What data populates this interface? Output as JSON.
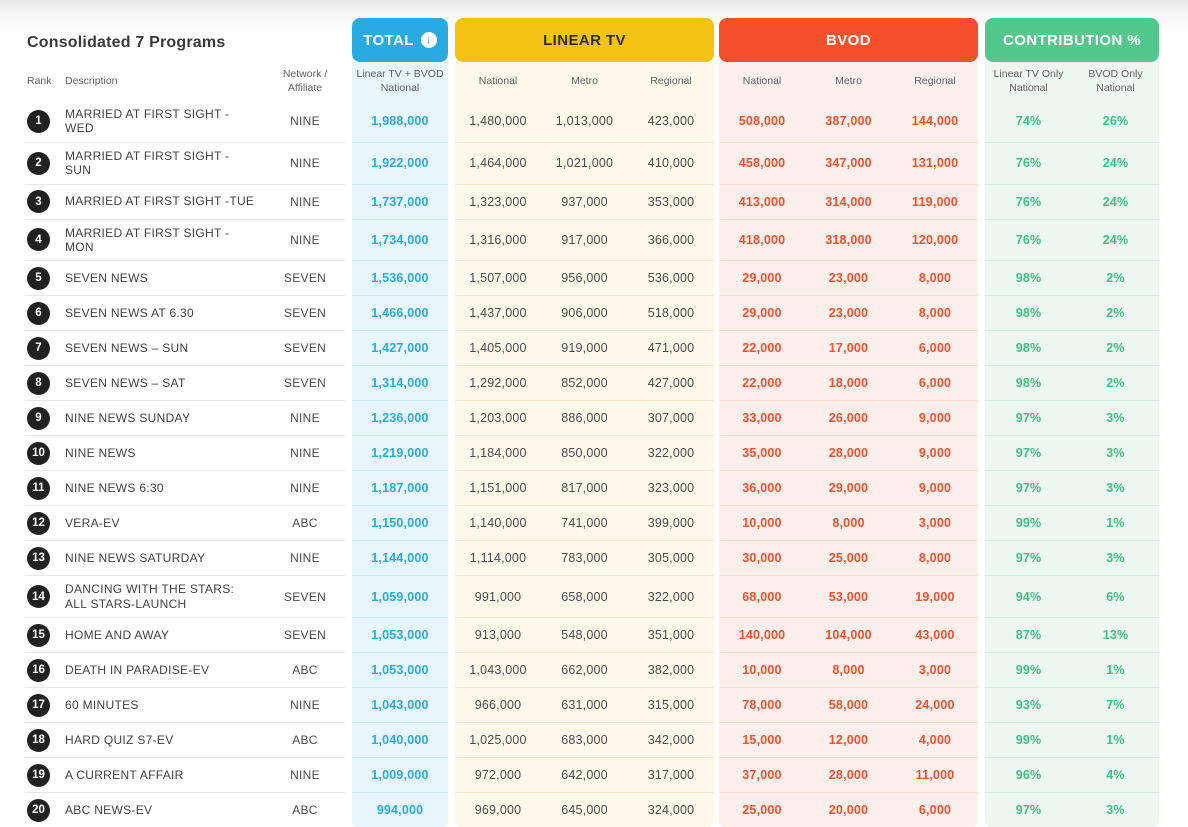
{
  "page": {
    "title": "Consolidated 7 Programs"
  },
  "header": {
    "rank": "Rank",
    "description": "Description",
    "network": "Network / Affiliate",
    "total": {
      "label": "TOTAL",
      "icon": "arrow-down-circle",
      "sub": "Linear TV + BVOD National"
    },
    "linear": {
      "label": "LINEAR TV",
      "subs": [
        "National",
        "Metro",
        "Regional"
      ]
    },
    "bvod": {
      "label": "BVOD",
      "subs": [
        "National",
        "Metro",
        "Regional"
      ]
    },
    "contribution": {
      "label": "CONTRIBUTION %",
      "subs": [
        "Linear TV Only National",
        "BVOD Only National"
      ]
    }
  },
  "colors": {
    "total-accent": "#29abe2",
    "total-bg": "#e8f6fd",
    "total-sep": "#cfeaf7",
    "linear-accent": "#f2c313",
    "linear-bg": "#fdf8e9",
    "linear-sep": "#f4e7c3",
    "bvod-accent": "#f4502c",
    "bvod-bg": "#fdf0ec",
    "bvod-sep": "#fbddd3",
    "con-accent": "#52c88c",
    "con-bg": "#edf8f2",
    "con-sep": "#d2eedf",
    "con-value": "#3fc182",
    "row-sep": "#e8e8e8",
    "rank-bg": "#212121"
  },
  "chart_data": {
    "type": "table",
    "title": "Consolidated 7 Programs",
    "columns": [
      "Rank",
      "Description",
      "Network / Affiliate",
      "Total (Linear TV + BVOD National)",
      "Linear TV National",
      "Linear TV Metro",
      "Linear TV Regional",
      "BVOD National",
      "BVOD Metro",
      "BVOD Regional",
      "Contribution % Linear TV Only National",
      "Contribution % BVOD Only National"
    ],
    "rows": [
      {
        "rank": "1",
        "description": "MARRIED AT FIRST SIGHT -WED",
        "network": "NINE",
        "total": "1,988,000",
        "linear_national": "1,480,000",
        "linear_metro": "1,013,000",
        "linear_regional": "423,000",
        "bvod_national": "508,000",
        "bvod_metro": "387,000",
        "bvod_regional": "144,000",
        "contribution_linear": "74%",
        "contribution_bvod": "26%"
      },
      {
        "rank": "2",
        "description": "MARRIED AT FIRST SIGHT -SUN",
        "network": "NINE",
        "total": "1,922,000",
        "linear_national": "1,464,000",
        "linear_metro": "1,021,000",
        "linear_regional": "410,000",
        "bvod_national": "458,000",
        "bvod_metro": "347,000",
        "bvod_regional": "131,000",
        "contribution_linear": "76%",
        "contribution_bvod": "24%"
      },
      {
        "rank": "3",
        "description": "MARRIED AT FIRST SIGHT -TUE",
        "network": "NINE",
        "total": "1,737,000",
        "linear_national": "1,323,000",
        "linear_metro": "937,000",
        "linear_regional": "353,000",
        "bvod_national": "413,000",
        "bvod_metro": "314,000",
        "bvod_regional": "119,000",
        "contribution_linear": "76%",
        "contribution_bvod": "24%"
      },
      {
        "rank": "4",
        "description": "MARRIED AT FIRST SIGHT -MON",
        "network": "NINE",
        "total": "1,734,000",
        "linear_national": "1,316,000",
        "linear_metro": "917,000",
        "linear_regional": "366,000",
        "bvod_national": "418,000",
        "bvod_metro": "318,000",
        "bvod_regional": "120,000",
        "contribution_linear": "76%",
        "contribution_bvod": "24%"
      },
      {
        "rank": "5",
        "description": "SEVEN NEWS",
        "network": "SEVEN",
        "total": "1,536,000",
        "linear_national": "1,507,000",
        "linear_metro": "956,000",
        "linear_regional": "536,000",
        "bvod_national": "29,000",
        "bvod_metro": "23,000",
        "bvod_regional": "8,000",
        "contribution_linear": "98%",
        "contribution_bvod": "2%"
      },
      {
        "rank": "6",
        "description": "SEVEN NEWS AT 6.30",
        "network": "SEVEN",
        "total": "1,466,000",
        "linear_national": "1,437,000",
        "linear_metro": "906,000",
        "linear_regional": "518,000",
        "bvod_national": "29,000",
        "bvod_metro": "23,000",
        "bvod_regional": "8,000",
        "contribution_linear": "98%",
        "contribution_bvod": "2%"
      },
      {
        "rank": "7",
        "description": "SEVEN NEWS – SUN",
        "network": "SEVEN",
        "total": "1,427,000",
        "linear_national": "1,405,000",
        "linear_metro": "919,000",
        "linear_regional": "471,000",
        "bvod_national": "22,000",
        "bvod_metro": "17,000",
        "bvod_regional": "6,000",
        "contribution_linear": "98%",
        "contribution_bvod": "2%"
      },
      {
        "rank": "8",
        "description": "SEVEN NEWS – SAT",
        "network": "SEVEN",
        "total": "1,314,000",
        "linear_national": "1,292,000",
        "linear_metro": "852,000",
        "linear_regional": "427,000",
        "bvod_national": "22,000",
        "bvod_metro": "18,000",
        "bvod_regional": "6,000",
        "contribution_linear": "98%",
        "contribution_bvod": "2%"
      },
      {
        "rank": "9",
        "description": "NINE NEWS SUNDAY",
        "network": "NINE",
        "total": "1,236,000",
        "linear_national": "1,203,000",
        "linear_metro": "886,000",
        "linear_regional": "307,000",
        "bvod_national": "33,000",
        "bvod_metro": "26,000",
        "bvod_regional": "9,000",
        "contribution_linear": "97%",
        "contribution_bvod": "3%"
      },
      {
        "rank": "10",
        "description": "NINE NEWS",
        "network": "NINE",
        "total": "1,219,000",
        "linear_national": "1,184,000",
        "linear_metro": "850,000",
        "linear_regional": "322,000",
        "bvod_national": "35,000",
        "bvod_metro": "28,000",
        "bvod_regional": "9,000",
        "contribution_linear": "97%",
        "contribution_bvod": "3%"
      },
      {
        "rank": "11",
        "description": "NINE NEWS 6:30",
        "network": "NINE",
        "total": "1,187,000",
        "linear_national": "1,151,000",
        "linear_metro": "817,000",
        "linear_regional": "323,000",
        "bvod_national": "36,000",
        "bvod_metro": "29,000",
        "bvod_regional": "9,000",
        "contribution_linear": "97%",
        "contribution_bvod": "3%"
      },
      {
        "rank": "12",
        "description": "VERA-EV",
        "network": "ABC",
        "total": "1,150,000",
        "linear_national": "1,140,000",
        "linear_metro": "741,000",
        "linear_regional": "399,000",
        "bvod_national": "10,000",
        "bvod_metro": "8,000",
        "bvod_regional": "3,000",
        "contribution_linear": "99%",
        "contribution_bvod": "1%"
      },
      {
        "rank": "13",
        "description": "NINE NEWS SATURDAY",
        "network": "NINE",
        "total": "1,144,000",
        "linear_national": "1,114,000",
        "linear_metro": "783,000",
        "linear_regional": "305,000",
        "bvod_national": "30,000",
        "bvod_metro": "25,000",
        "bvod_regional": "8,000",
        "contribution_linear": "97%",
        "contribution_bvod": "3%"
      },
      {
        "rank": "14",
        "description": "DANCING WITH THE STARS: ALL STARS-LAUNCH",
        "network": "SEVEN",
        "total": "1,059,000",
        "linear_national": "991,000",
        "linear_metro": "658,000",
        "linear_regional": "322,000",
        "bvod_national": "68,000",
        "bvod_metro": "53,000",
        "bvod_regional": "19,000",
        "contribution_linear": "94%",
        "contribution_bvod": "6%"
      },
      {
        "rank": "15",
        "description": "HOME AND AWAY",
        "network": "SEVEN",
        "total": "1,053,000",
        "linear_national": "913,000",
        "linear_metro": "548,000",
        "linear_regional": "351,000",
        "bvod_national": "140,000",
        "bvod_metro": "104,000",
        "bvod_regional": "43,000",
        "contribution_linear": "87%",
        "contribution_bvod": "13%"
      },
      {
        "rank": "16",
        "description": "DEATH IN PARADISE-EV",
        "network": "ABC",
        "total": "1,053,000",
        "linear_national": "1,043,000",
        "linear_metro": "662,000",
        "linear_regional": "382,000",
        "bvod_national": "10,000",
        "bvod_metro": "8,000",
        "bvod_regional": "3,000",
        "contribution_linear": "99%",
        "contribution_bvod": "1%"
      },
      {
        "rank": "17",
        "description": "60 MINUTES",
        "network": "NINE",
        "total": "1,043,000",
        "linear_national": "966,000",
        "linear_metro": "631,000",
        "linear_regional": "315,000",
        "bvod_national": "78,000",
        "bvod_metro": "58,000",
        "bvod_regional": "24,000",
        "contribution_linear": "93%",
        "contribution_bvod": "7%"
      },
      {
        "rank": "18",
        "description": "HARD QUIZ S7-EV",
        "network": "ABC",
        "total": "1,040,000",
        "linear_national": "1,025,000",
        "linear_metro": "683,000",
        "linear_regional": "342,000",
        "bvod_national": "15,000",
        "bvod_metro": "12,000",
        "bvod_regional": "4,000",
        "contribution_linear": "99%",
        "contribution_bvod": "1%"
      },
      {
        "rank": "19",
        "description": "A CURRENT AFFAIR",
        "network": "NINE",
        "total": "1,009,000",
        "linear_national": "972,000",
        "linear_metro": "642,000",
        "linear_regional": "317,000",
        "bvod_national": "37,000",
        "bvod_metro": "28,000",
        "bvod_regional": "11,000",
        "contribution_linear": "96%",
        "contribution_bvod": "4%"
      },
      {
        "rank": "20",
        "description": "ABC NEWS-EV",
        "network": "ABC",
        "total": "994,000",
        "linear_national": "969,000",
        "linear_metro": "645,000",
        "linear_regional": "324,000",
        "bvod_national": "25,000",
        "bvod_metro": "20,000",
        "bvod_regional": "6,000",
        "contribution_linear": "97%",
        "contribution_bvod": "3%"
      }
    ]
  }
}
